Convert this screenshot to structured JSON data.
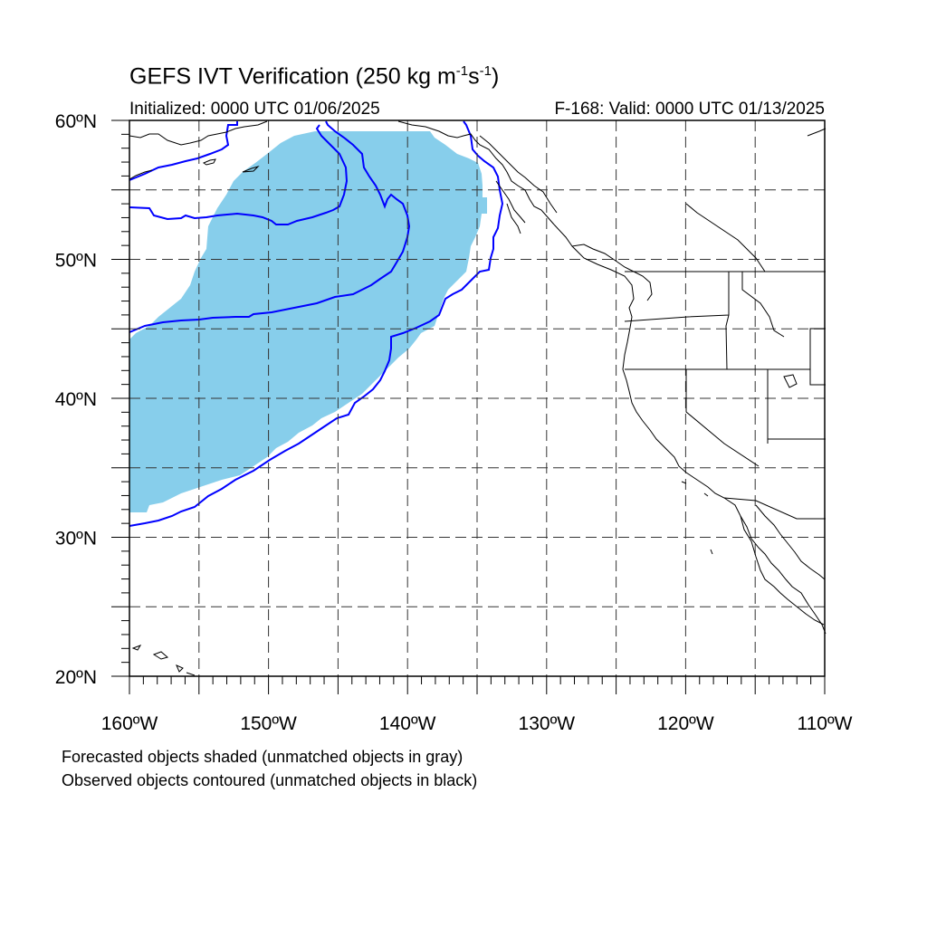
{
  "title": {
    "main": "GEFS IVT Verification (250 kg m",
    "exp1": "-1",
    "mid": "s",
    "exp2": "-1",
    "end": ")"
  },
  "subtitle": {
    "initialized": "Initialized: 0000 UTC 01/06/2025",
    "valid": "F-168: Valid: 0000 UTC 01/13/2025"
  },
  "axes": {
    "lat_labels": [
      {
        "text": "60ºN",
        "lat": 60
      },
      {
        "text": "50ºN",
        "lat": 50
      },
      {
        "text": "40ºN",
        "lat": 40
      },
      {
        "text": "30ºN",
        "lat": 30
      },
      {
        "text": "20ºN",
        "lat": 20
      }
    ],
    "lon_labels": [
      {
        "text": "160ºW",
        "lon": -160
      },
      {
        "text": "150ºW",
        "lon": -150
      },
      {
        "text": "140ºW",
        "lon": -140
      },
      {
        "text": "130ºW",
        "lon": -130
      },
      {
        "text": "120ºW",
        "lon": -120
      },
      {
        "text": "110ºW",
        "lon": -110
      }
    ],
    "lat_range": [
      20,
      60
    ],
    "lon_range": [
      -160,
      -110
    ],
    "grid_lat_step": 5,
    "grid_lon_step": 5
  },
  "colors": {
    "forecast_fill": "#87ceeb",
    "observed_contour": "#0000ff",
    "coast": "#000000",
    "grid": "#000000"
  },
  "legend": {
    "line1": "Forecasted objects shaded (unmatched objects in gray)",
    "line2": "Observed objects contoured (unmatched objects in black)"
  }
}
